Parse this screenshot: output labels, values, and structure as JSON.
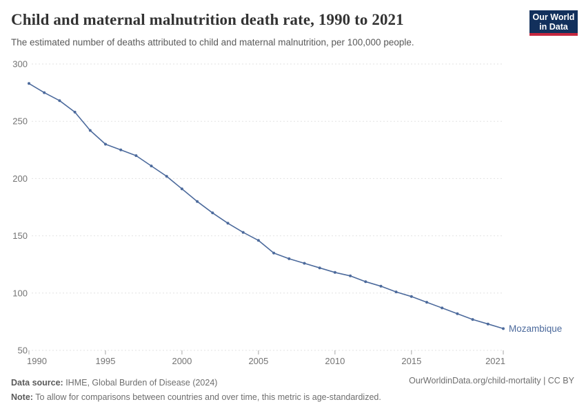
{
  "header": {
    "title": "Child and maternal malnutrition death rate, 1990 to 2021",
    "subtitle": "The estimated number of deaths attributed to child and maternal malnutrition, per 100,000 people.",
    "logo": {
      "line1": "Our World",
      "line2": "in Data",
      "bg_color": "#12305c",
      "accent_color": "#c5273f"
    }
  },
  "chart_data": {
    "type": "line",
    "title": "Child and maternal malnutrition death rate, 1990 to 2021",
    "xlabel": "",
    "ylabel": "",
    "xlim": [
      1990,
      2021
    ],
    "ylim": [
      50,
      300
    ],
    "x_ticks": [
      1990,
      1995,
      2000,
      2005,
      2010,
      2015,
      2021
    ],
    "y_ticks": [
      50,
      100,
      150,
      200,
      250,
      300
    ],
    "grid": "dashed-horizontal",
    "legend_position": "end-of-line-label",
    "series": [
      {
        "name": "Mozambique",
        "color": "#4c6a9c",
        "x": [
          1990,
          1991,
          1992,
          1993,
          1994,
          1995,
          1996,
          1997,
          1998,
          1999,
          2000,
          2001,
          2002,
          2003,
          2004,
          2005,
          2006,
          2007,
          2008,
          2009,
          2010,
          2011,
          2012,
          2013,
          2014,
          2015,
          2016,
          2017,
          2018,
          2019,
          2020,
          2021
        ],
        "values": [
          283,
          275,
          268,
          258,
          242,
          230,
          225,
          220,
          211,
          202,
          191,
          180,
          170,
          161,
          153,
          146,
          135,
          130,
          126,
          122,
          118,
          115,
          110,
          106,
          101,
          97,
          92,
          87,
          82,
          77,
          73,
          69
        ]
      }
    ]
  },
  "footer": {
    "datasource_label": "Data source:",
    "datasource_value": " IHME, Global Burden of Disease (2024)",
    "note_label": "Note:",
    "note_value": " To allow for comparisons between countries and over time, this metric is age-standardized.",
    "link": "OurWorldinData.org/child-mortality | CC BY"
  },
  "colors": {
    "line": "#4c6a9c",
    "grid": "#e2e2e2",
    "tick": "#a5a5a5",
    "axis_text": "#737373",
    "title_text": "#333333",
    "subtitle_text": "#595959",
    "footer_text": "#6e6e6e"
  }
}
